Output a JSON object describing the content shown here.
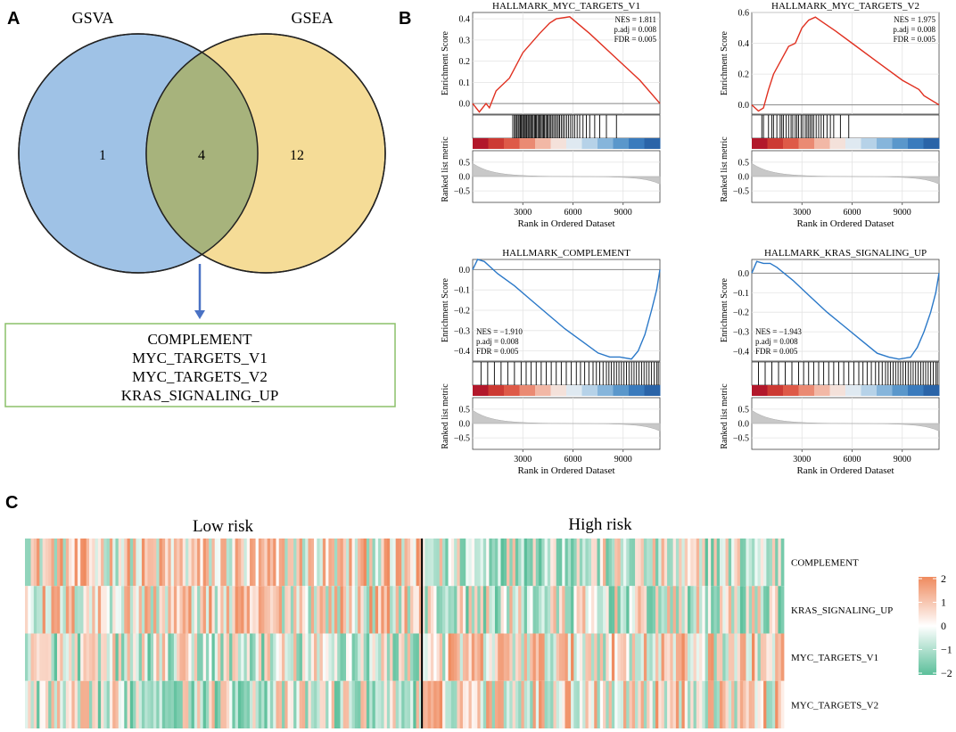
{
  "panel_labels": [
    "A",
    "B",
    "C"
  ],
  "colors": {
    "gsva_fill": "#9fc2e6",
    "gsea_fill": "#f5dc97",
    "overlap_fill": "#a7b37c",
    "arrow": "#4a72c4",
    "box_border": "#8cc06a",
    "es_up_line": "#e03020",
    "es_down_line": "#2a78c8",
    "heat_high": "#ef8a5e",
    "heat_low": "#5bbf9a",
    "heat_mid": "#ffffff"
  },
  "venn": {
    "left_label": "GSVA",
    "right_label": "GSEA",
    "left_only": "1",
    "overlap": "4",
    "right_only": "12",
    "shared_sets": [
      "COMPLEMENT",
      "MYC_TARGETS_V1",
      "MYC_TARGETS_V2",
      "KRAS_SIGNALING_UP"
    ]
  },
  "chart_data": [
    {
      "type": "line",
      "title": "HALLMARK_MYC_TARGETS_V1",
      "direction": "up",
      "ylabel": "Enrichment Score",
      "ylim": [
        -0.05,
        0.43
      ],
      "yticks": [
        "0.4",
        "0.3",
        "0.2",
        "0.1",
        "0.0"
      ],
      "stats": [
        "NES = 1.811",
        "p.adj = 0.008",
        "FDR = 0.005"
      ],
      "x": [
        0,
        400,
        800,
        1000,
        1400,
        2200,
        3000,
        4000,
        4600,
        5000,
        5800,
        7000,
        8500,
        10000,
        11200
      ],
      "y": [
        0.0,
        -0.04,
        0.0,
        -0.02,
        0.06,
        0.12,
        0.24,
        0.33,
        0.38,
        0.4,
        0.41,
        0.33,
        0.22,
        0.11,
        0.0
      ],
      "hits": [
        2400,
        2500,
        2560,
        2640,
        2720,
        2780,
        2850,
        2910,
        2980,
        3040,
        3100,
        3160,
        3230,
        3300,
        3360,
        3420,
        3500,
        3560,
        3620,
        3700,
        3760,
        3820,
        3900,
        3960,
        4030,
        4100,
        4170,
        4240,
        4300,
        4380,
        4450,
        4520,
        4600,
        4680,
        4760,
        4850,
        4940,
        5030,
        5120,
        5200,
        5300,
        5400,
        5500,
        5620,
        5740,
        5860,
        5980,
        6100,
        6250,
        6400,
        6600,
        6800,
        7000,
        7300,
        7600,
        8000,
        8600
      ],
      "metric_label": "Ranked list metric",
      "metric_ticks": [
        "0.5",
        "0.0",
        "-0.5"
      ],
      "xlabel": "Rank in Ordered Dataset",
      "xticks": [
        3000,
        6000,
        9000
      ]
    },
    {
      "type": "line",
      "title": "HALLMARK_MYC_TARGETS_V2",
      "direction": "up",
      "ylabel": "Enrichment Score",
      "ylim": [
        -0.06,
        0.6
      ],
      "yticks": [
        "0.6",
        "0.4",
        "0.2",
        "0.0"
      ],
      "stats": [
        "NES = 1.975",
        "p.adj = 0.008",
        "FDR = 0.005"
      ],
      "x": [
        0,
        400,
        700,
        1000,
        1300,
        1800,
        2200,
        2600,
        3000,
        3400,
        3800,
        4200,
        5000,
        6000,
        7500,
        9000,
        10000,
        10300,
        11200
      ],
      "y": [
        0.0,
        -0.04,
        -0.02,
        0.1,
        0.2,
        0.3,
        0.38,
        0.4,
        0.5,
        0.55,
        0.57,
        0.54,
        0.48,
        0.4,
        0.28,
        0.16,
        0.1,
        0.06,
        0.0
      ],
      "hits": [
        600,
        700,
        1000,
        1200,
        1300,
        1500,
        1700,
        1800,
        1900,
        2050,
        2200,
        2350,
        2450,
        2600,
        2700,
        2800,
        2950,
        3050,
        3200,
        3300,
        3400,
        3500,
        3600,
        3700,
        3850,
        4000,
        4150,
        4300,
        4500,
        4700,
        4900,
        5300,
        5800
      ],
      "metric_label": "Ranked list metric",
      "metric_ticks": [
        "0.5",
        "0.0",
        "-0.5"
      ],
      "xlabel": "Rank in Ordered Dataset",
      "xticks": [
        3000,
        6000,
        9000
      ]
    },
    {
      "type": "line",
      "title": "HALLMARK_COMPLEMENT",
      "direction": "down",
      "ylabel": "Enrichment Score",
      "ylim": [
        -0.45,
        0.05
      ],
      "yticks": [
        "0.0",
        "-0.1",
        "-0.2",
        "-0.3",
        "-0.4"
      ],
      "stats": [
        "NES = -1.910",
        "p.adj = 0.008",
        "FDR = 0.005"
      ],
      "x": [
        0,
        300,
        700,
        1100,
        1500,
        2500,
        3500,
        4500,
        5500,
        6500,
        7500,
        8200,
        8800,
        9500,
        9900,
        10300,
        10700,
        11000,
        11200
      ],
      "y": [
        0.0,
        0.05,
        0.04,
        0.01,
        -0.02,
        -0.08,
        -0.15,
        -0.22,
        -0.29,
        -0.35,
        -0.41,
        -0.43,
        -0.43,
        -0.44,
        -0.4,
        -0.32,
        -0.2,
        -0.1,
        0.0
      ],
      "hits": [
        500,
        900,
        1300,
        1700,
        2100,
        2500,
        2900,
        3200,
        3500,
        3800,
        4100,
        4400,
        4700,
        5000,
        5300,
        5600,
        5900,
        6200,
        6450,
        6700,
        6950,
        7200,
        7400,
        7600,
        7800,
        8000,
        8150,
        8300,
        8450,
        8600,
        8750,
        8900,
        9050,
        9200,
        9350,
        9500,
        9650,
        9800,
        9950,
        10100,
        10250,
        10400,
        10550,
        10700,
        10850,
        11000,
        11100
      ],
      "metric_label": "Ranked list metric",
      "metric_ticks": [
        "0.5",
        "0.0",
        "-0.5"
      ],
      "xlabel": "Rank in Ordered Dataset",
      "xticks": [
        3000,
        6000,
        9000
      ]
    },
    {
      "type": "line",
      "title": "HALLMARK_KRAS_SIGNALING_UP",
      "direction": "down",
      "ylabel": "Enrichment Score",
      "ylim": [
        -0.45,
        0.07
      ],
      "yticks": [
        "0.0",
        "-0.1",
        "-0.2",
        "-0.3",
        "-0.4"
      ],
      "stats": [
        "NES = -1.943",
        "p.adj = 0.008",
        "FDR = 0.005"
      ],
      "x": [
        0,
        300,
        700,
        1100,
        1500,
        2500,
        3500,
        4500,
        5500,
        6500,
        7500,
        8200,
        8800,
        9500,
        9900,
        10300,
        10700,
        11000,
        11200
      ],
      "y": [
        0.0,
        0.06,
        0.05,
        0.05,
        0.03,
        -0.04,
        -0.12,
        -0.2,
        -0.27,
        -0.34,
        -0.41,
        -0.43,
        -0.44,
        -0.43,
        -0.38,
        -0.3,
        -0.2,
        -0.1,
        0.0
      ],
      "hits": [
        400,
        800,
        1200,
        1600,
        2000,
        2400,
        2800,
        3100,
        3400,
        3700,
        4000,
        4300,
        4600,
        4900,
        5200,
        5500,
        5800,
        6100,
        6400,
        6650,
        6900,
        7150,
        7400,
        7600,
        7800,
        8000,
        8150,
        8300,
        8450,
        8600,
        8750,
        8900,
        9050,
        9200,
        9350,
        9500,
        9650,
        9800,
        9950,
        10100,
        10250,
        10400,
        10550,
        10700,
        10850,
        11000,
        11100
      ],
      "metric_label": "Ranked list metric",
      "metric_ticks": [
        "0.5",
        "0.0",
        "-0.5"
      ],
      "xlabel": "Rank in Ordered Dataset",
      "xticks": [
        3000,
        6000,
        9000
      ]
    },
    {
      "type": "heatmap",
      "column_groups": [
        "Low risk",
        "High risk"
      ],
      "rows": [
        {
          "name": "COMPLEMENT",
          "low_risk_mean": 0.4,
          "high_risk_mean": -0.4
        },
        {
          "name": "KRAS_SIGNALING_UP",
          "low_risk_mean": 0.4,
          "high_risk_mean": -0.4
        },
        {
          "name": "MYC_TARGETS_V1",
          "low_risk_mean": -0.4,
          "high_risk_mean": 0.4
        },
        {
          "name": "MYC_TARGETS_V2",
          "low_risk_mean": -0.4,
          "high_risk_mean": 0.4
        }
      ],
      "color_range": [
        -2,
        2
      ],
      "legend_ticks": [
        "2",
        "1",
        "0",
        "−1",
        "−2"
      ]
    }
  ]
}
